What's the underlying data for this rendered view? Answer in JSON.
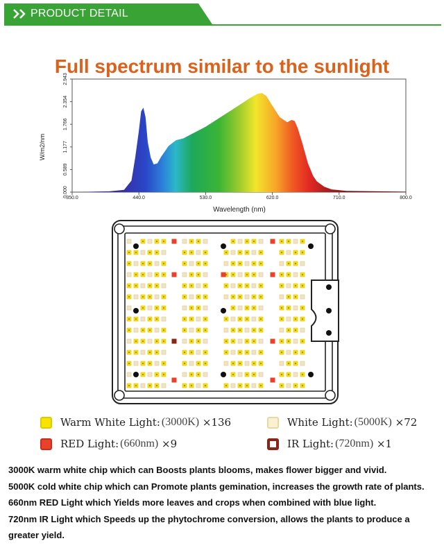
{
  "header": {
    "title": "PRODUCT DETAIL",
    "icon": "double-chevron-right-icon",
    "color": "#3aa335"
  },
  "spectrum_title": "Full spectrum similar to the sunlight",
  "chart_data": {
    "type": "area",
    "title": "Full spectrum similar to the sunlight",
    "xlabel": "Wavelength (nm)",
    "ylabel": "W/m2/nm",
    "xlim": [
      350,
      800
    ],
    "ylim": [
      0,
      2.943
    ],
    "xticks": [
      "350.0",
      "440.0",
      "530.0",
      "620.0",
      "710.0",
      "800.0"
    ],
    "yticks": [
      "0.000",
      "0.589",
      "1.177",
      "1.766",
      "2.354",
      "2.943"
    ],
    "x": [
      350,
      400,
      420,
      430,
      435,
      440,
      443,
      446,
      449,
      452,
      456,
      460,
      465,
      470,
      480,
      490,
      500,
      510,
      520,
      530,
      550,
      570,
      590,
      600,
      606,
      612,
      620,
      630,
      640,
      646,
      650,
      654,
      660,
      668,
      675,
      680,
      690,
      700,
      720,
      800
    ],
    "y": [
      0,
      0.02,
      0.06,
      0.3,
      0.9,
      1.6,
      2.1,
      2.2,
      1.95,
      1.3,
      0.9,
      0.72,
      0.75,
      0.92,
      1.2,
      1.35,
      1.4,
      1.5,
      1.6,
      1.7,
      1.95,
      2.2,
      2.45,
      2.56,
      2.58,
      2.5,
      2.25,
      1.95,
      1.82,
      1.88,
      1.85,
      1.68,
      1.3,
      0.75,
      0.42,
      0.28,
      0.14,
      0.07,
      0.03,
      0.01
    ]
  },
  "legend": [
    {
      "label": "Warm White Light:",
      "spec": "(3000K)",
      "count": "×136",
      "color": "#f5e500"
    },
    {
      "label": "White Light:",
      "spec": "(5000K)",
      "count": "×72",
      "color": "#f7ecc2"
    },
    {
      "label": "RED Light:",
      "spec": "(660nm)",
      "count": "×9",
      "color": "#e8412c"
    },
    {
      "label": "IR Light:",
      "spec": "(720nm)",
      "count": "×1",
      "color": "#8b2416"
    }
  ],
  "descriptions": [
    {
      "lead": "3000K warm white chip which can ",
      "bold": "Boosts plants blooms, makes flower bigger and vivid."
    },
    {
      "lead": "5000K cold white chip  which can ",
      "bold": "Promote plants gemination, increases the growth rate of plants."
    },
    {
      "lead": "660nm RED Light  which ",
      "bold": "Yields more leaves and crops when combined with blue light."
    },
    {
      "lead": "720nm IR Light  which ",
      "bold": "Speeds up the phytochrome conversion, allows the plants to produce a greater yield."
    }
  ]
}
